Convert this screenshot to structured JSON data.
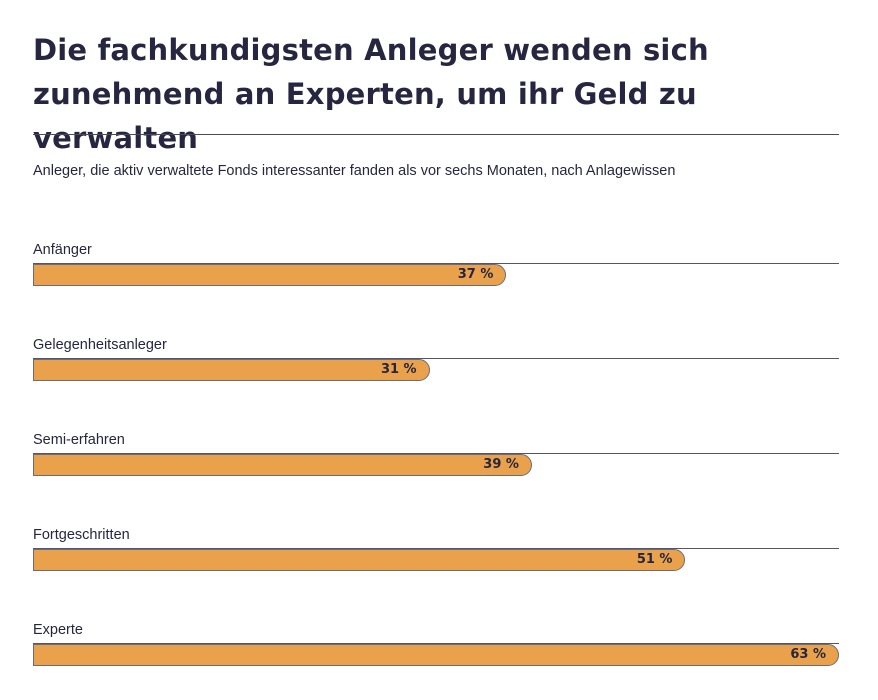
{
  "chart_data": {
    "type": "bar",
    "orientation": "horizontal",
    "title": "Die fachkundigsten Anleger wenden sich zunehmend an Experten, um ihr Geld zu verwalten",
    "subtitle": "Anleger, die aktiv verwaltete Fonds interessanter fanden als vor sechs Monaten, nach Anlagewissen",
    "categories": [
      "Anfänger",
      "Gelegenheitsanleger",
      "Semi-erfahren",
      "Fortgeschritten",
      "Experte"
    ],
    "values": [
      37,
      31,
      39,
      51,
      63
    ],
    "value_labels": [
      "37 %",
      "31 %",
      "39 %",
      "51 %",
      "63 %"
    ],
    "unit": "%",
    "xlim": [
      0,
      63
    ],
    "bar_color": "#e9a24b",
    "grid": false,
    "legend": "none"
  }
}
